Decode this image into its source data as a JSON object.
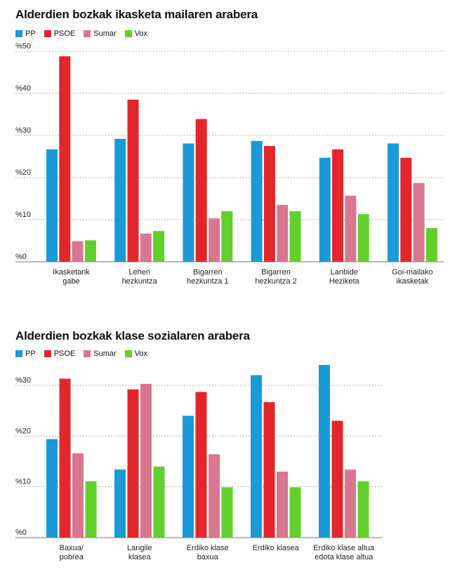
{
  "chart_data": [
    {
      "type": "bar",
      "title": "Alderdien bozkak ikasketa mailaren arabera",
      "legend_position": "top-left",
      "grid": true,
      "ylim": [
        0,
        50
      ],
      "yticks": [
        0,
        10,
        20,
        30,
        40,
        50
      ],
      "ytick_labels": [
        "%0",
        "%10",
        "%20",
        "%30",
        "%40",
        "%50"
      ],
      "categories": [
        [
          "Ikasketarik",
          "gabe"
        ],
        [
          "Lehen",
          "hezkuntza"
        ],
        [
          "Bigarren",
          "hezkuntza 1"
        ],
        [
          "Bigarren",
          "hezkuntza 2"
        ],
        [
          "Lanbide",
          "Heziketa"
        ],
        [
          "Goi-mailako",
          "ikasketak"
        ]
      ],
      "series": [
        {
          "name": "PP",
          "color": "#1a9ad6",
          "values": [
            26.7,
            29.2,
            28.1,
            28.7,
            24.7,
            28.1
          ]
        },
        {
          "name": "PSOE",
          "color": "#e3262b",
          "values": [
            48.8,
            38.5,
            33.9,
            27.5,
            26.7,
            24.7
          ]
        },
        {
          "name": "Sumar",
          "color": "#d97791",
          "values": [
            4.9,
            6.7,
            10.3,
            13.5,
            15.7,
            18.7
          ]
        },
        {
          "name": "Vox",
          "color": "#62d02a",
          "values": [
            5.1,
            7.3,
            12.0,
            12.0,
            11.3,
            8.0
          ]
        }
      ]
    },
    {
      "type": "bar",
      "title": "Alderdien bozkak klase sozialaren arabera",
      "legend_position": "top-left",
      "grid": true,
      "ylim": [
        0,
        30
      ],
      "yticks": [
        0,
        10,
        20,
        30
      ],
      "ytick_labels": [
        "%0",
        "%10",
        "%20",
        "%30"
      ],
      "categories": [
        [
          "Baxua/",
          "pobrea"
        ],
        [
          "Langile",
          "klasea"
        ],
        [
          "Erdiko klase",
          "baxua"
        ],
        [
          "Erdiko klasea"
        ],
        [
          "Erdiko klase altua",
          "edota klase altua"
        ]
      ],
      "series": [
        {
          "name": "PP",
          "color": "#1a9ad6",
          "values": [
            19.4,
            13.4,
            24.0,
            32.0,
            34.0
          ]
        },
        {
          "name": "PSOE",
          "color": "#e3262b",
          "values": [
            31.3,
            29.2,
            28.7,
            26.7,
            23.0
          ]
        },
        {
          "name": "Sumar",
          "color": "#d97791",
          "values": [
            16.6,
            30.3,
            16.4,
            13.0,
            13.4
          ]
        },
        {
          "name": "Vox",
          "color": "#62d02a",
          "values": [
            11.1,
            14.0,
            9.9,
            9.9,
            11.1
          ]
        }
      ]
    }
  ]
}
